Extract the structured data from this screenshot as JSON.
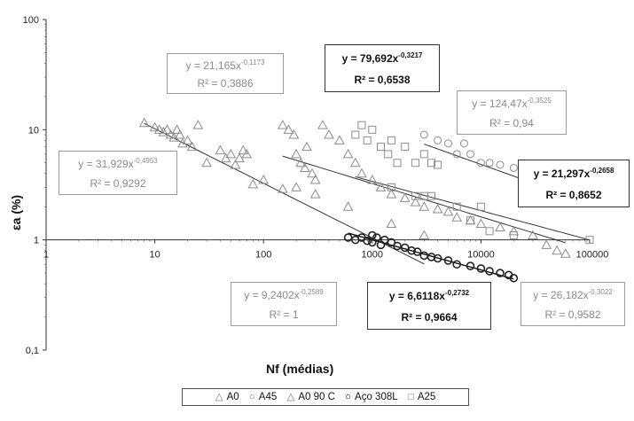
{
  "chart_data": {
    "type": "scatter",
    "xlabel": "Nf (médias)",
    "ylabel": "εa (%)",
    "xscale": "log",
    "yscale": "log",
    "xlim": [
      1,
      100000
    ],
    "ylim": [
      0.1,
      100
    ],
    "x_tick_labels": [
      "1",
      "10",
      "100",
      "1000",
      "10000",
      "100000"
    ],
    "y_tick_labels": [
      "0,1",
      "1",
      "10",
      "100"
    ],
    "grid": false,
    "legend_position": "bottom",
    "series": [
      {
        "name": "A0",
        "marker": "triangle",
        "color": "#8c8c8c",
        "points": [
          [
            8,
            11.5
          ],
          [
            10,
            10.5
          ],
          [
            11,
            10
          ],
          [
            12,
            9.5
          ],
          [
            13,
            10
          ],
          [
            14,
            9
          ],
          [
            15,
            8.5
          ],
          [
            16,
            10
          ],
          [
            17,
            9
          ],
          [
            18,
            7.5
          ],
          [
            20,
            8
          ],
          [
            22,
            7
          ],
          [
            25,
            11
          ],
          [
            30,
            5
          ],
          [
            40,
            6.5
          ],
          [
            45,
            5.5
          ],
          [
            50,
            6
          ],
          [
            55,
            4.8
          ],
          [
            60,
            5.5
          ],
          [
            65,
            6.5
          ],
          [
            70,
            6
          ],
          [
            80,
            3.2
          ],
          [
            100,
            3.5
          ],
          [
            150,
            2.9
          ],
          [
            200,
            3.0
          ],
          [
            300,
            2.6
          ],
          [
            600,
            2.0
          ],
          [
            1500,
            1.4
          ],
          [
            3000,
            1.1
          ]
        ],
        "fit": {
          "eq": "y = 31,929x",
          "exp": "-0,4953",
          "r2": "R² = 0,9292",
          "a": 31.929,
          "b": -0.4953,
          "x_range": [
            8,
            3000
          ]
        }
      },
      {
        "name": "A45",
        "marker": "circle",
        "color": "#8c8c8c",
        "points": [
          [
            3000,
            9
          ],
          [
            4000,
            8
          ],
          [
            5000,
            7.5
          ],
          [
            6000,
            6
          ],
          [
            7000,
            7.5
          ],
          [
            8000,
            6
          ],
          [
            10000,
            5
          ],
          [
            12000,
            5
          ],
          [
            15000,
            4.8
          ],
          [
            20000,
            4.5
          ],
          [
            25000,
            4.2
          ],
          [
            30000,
            3.8
          ],
          [
            35000,
            3.2
          ],
          [
            40000,
            3.2
          ]
        ],
        "fit": {
          "eq": "y = 124,47x",
          "exp": "-0,3525",
          "r2": "R² = 0,94",
          "a": 124.47,
          "b": -0.3525,
          "x_range": [
            3000,
            40000
          ]
        }
      },
      {
        "name": "A0 90 C",
        "marker": "triangle",
        "color": "#8c8c8c",
        "points": [
          [
            150,
            11
          ],
          [
            170,
            10
          ],
          [
            190,
            9
          ],
          [
            200,
            6
          ],
          [
            220,
            5
          ],
          [
            240,
            4.5
          ],
          [
            250,
            7
          ],
          [
            280,
            4
          ],
          [
            300,
            3.5
          ],
          [
            350,
            11
          ],
          [
            400,
            9
          ],
          [
            500,
            8
          ],
          [
            600,
            6
          ],
          [
            700,
            5
          ],
          [
            800,
            4
          ],
          [
            1000,
            3.5
          ],
          [
            1200,
            3
          ],
          [
            1500,
            2.6
          ],
          [
            2000,
            2.4
          ],
          [
            2500,
            2.2
          ],
          [
            3000,
            2
          ],
          [
            4000,
            1.9
          ],
          [
            5000,
            1.8
          ],
          [
            6000,
            1.6
          ],
          [
            8000,
            1.5
          ],
          [
            10000,
            1.4
          ],
          [
            15000,
            1.3
          ],
          [
            20000,
            1.2
          ],
          [
            30000,
            1.1
          ],
          [
            40000,
            0.9
          ],
          [
            50000,
            0.8
          ],
          [
            60000,
            0.75
          ]
        ],
        "fit": {
          "eq": "y = 26,182x",
          "exp": "-0,3022",
          "r2": "R² = 0,9582",
          "a": 26.182,
          "b": -0.3022,
          "x_range": [
            150,
            60000
          ]
        }
      },
      {
        "name": "Aço 308L",
        "marker": "circle",
        "color": "#222222",
        "points": [
          [
            600,
            1.05
          ],
          [
            700,
            1.0
          ],
          [
            800,
            1.05
          ],
          [
            900,
            0.98
          ],
          [
            1000,
            1.1
          ],
          [
            1000,
            0.95
          ],
          [
            1100,
            1.05
          ],
          [
            1200,
            0.9
          ],
          [
            1300,
            1.0
          ],
          [
            1500,
            0.95
          ],
          [
            1700,
            0.88
          ],
          [
            2000,
            0.85
          ],
          [
            2300,
            0.8
          ],
          [
            2600,
            0.78
          ],
          [
            3000,
            0.72
          ],
          [
            3500,
            0.7
          ],
          [
            4000,
            0.68
          ],
          [
            5000,
            0.65
          ],
          [
            6000,
            0.6
          ],
          [
            8000,
            0.58
          ],
          [
            10000,
            0.55
          ],
          [
            12000,
            0.52
          ],
          [
            15000,
            0.5
          ],
          [
            18000,
            0.48
          ],
          [
            20000,
            0.45
          ]
        ],
        "fit": {
          "eq": "y = 6,6118x",
          "exp": "-0,2732",
          "r2": "R² = 0,9664",
          "a": 6.6118,
          "b": -0.2732,
          "x_range": [
            600,
            20000
          ]
        }
      },
      {
        "name": "A25",
        "marker": "square",
        "color": "#8c8c8c",
        "points": [
          [
            700,
            9
          ],
          [
            800,
            11
          ],
          [
            900,
            8
          ],
          [
            1000,
            10
          ],
          [
            1200,
            7
          ],
          [
            1400,
            6
          ],
          [
            1500,
            8
          ],
          [
            1700,
            5
          ],
          [
            2000,
            7
          ],
          [
            2500,
            5
          ],
          [
            3000,
            6
          ],
          [
            3500,
            5
          ],
          [
            4000,
            4.8
          ],
          [
            1500,
            3
          ],
          [
            2500,
            2.5
          ],
          [
            3000,
            2.5
          ],
          [
            3500,
            2.5
          ],
          [
            6000,
            2
          ],
          [
            8000,
            1.5
          ],
          [
            10000,
            2
          ],
          [
            12000,
            1.2
          ],
          [
            20000,
            1.1
          ],
          [
            100000,
            1.0
          ]
        ],
        "fit": {
          "eq": "y = 21,297x",
          "exp": "-0,2658",
          "r2": "R² = 0,8652",
          "a": 21.297,
          "b": -0.2658,
          "x_range": [
            700,
            100000
          ]
        }
      }
    ],
    "extra_fits": [
      {
        "eq": "y = 21,165x",
        "exp": "-0,1173",
        "r2": "R² = 0,3886"
      },
      {
        "eq": "y = 79,692x",
        "exp": "-0,3217",
        "r2": "R² = 0,6538"
      },
      {
        "eq": "y = 9,2402x",
        "exp": "-0,2589",
        "r2": "R² = 1"
      }
    ]
  },
  "legend": {
    "a0": "A0",
    "a45": "A45",
    "a0_90c": "A0 90 C",
    "aco308l": "Aço 308L",
    "a25": "A25"
  }
}
